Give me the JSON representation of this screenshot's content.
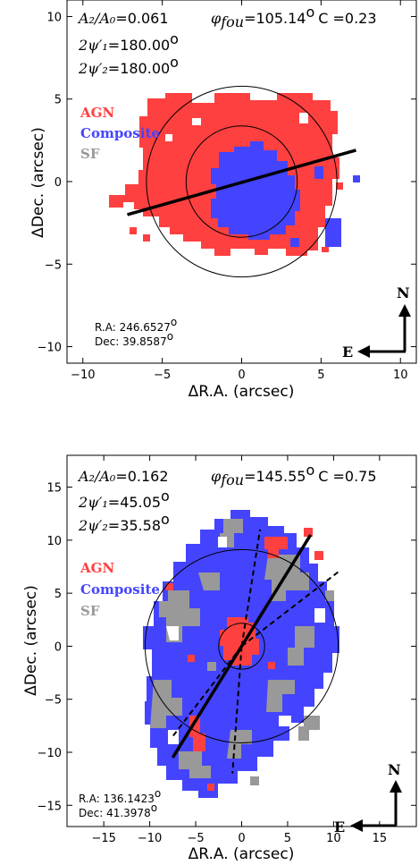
{
  "colors": {
    "agn": "#ff4040",
    "composite": "#4444ff",
    "sf": "#999999"
  },
  "legend": {
    "agn": "AGN",
    "composite": "Composite",
    "sf": "SF"
  },
  "compass": {
    "north": "N",
    "east": "E"
  },
  "chart_data": [
    {
      "type": "heatmap",
      "xlabel": "ΔR.A. (arcsec)",
      "ylabel": "ΔDec. (arcsec)",
      "xlim": [
        -11,
        11
      ],
      "ylim": [
        -11,
        11
      ],
      "xticks": [
        "−10",
        "−5",
        "0",
        "5",
        "10"
      ],
      "yticks": [
        "−10",
        "−5",
        "0",
        "5",
        "10"
      ],
      "annotation": {
        "a_label": "A₂/A₀",
        "a_value": "=0.061",
        "phi_label": "φ",
        "phi_sub": "fou",
        "phi_value": "=105.14",
        "c_value": "C =0.23",
        "psi1_label": "2ψ′₁",
        "psi1_value": "=180.00",
        "psi2_label": "2ψ′₂",
        "psi2_value": "=180.00"
      },
      "ra_text": "R.A: 246.6527",
      "dec_text": "Dec: 39.8587",
      "circles_r": [
        3.5,
        6.0
      ],
      "main_line": [
        [
          -7.2,
          -2.0
        ],
        [
          7.2,
          1.9
        ]
      ],
      "dashed_lines": []
    },
    {
      "type": "heatmap",
      "xlabel": "ΔR.A. (arcsec)",
      "ylabel": "ΔDec. (arcsec)",
      "xlim": [
        -19,
        19
      ],
      "ylim": [
        -17,
        18
      ],
      "xticks": [
        "−15",
        "−10",
        "−5",
        "0",
        "5",
        "10",
        "15"
      ],
      "yticks": [
        "−15",
        "−10",
        "−5",
        "0",
        "5",
        "10",
        "15"
      ],
      "annotation": {
        "a_label": "A₂/A₀",
        "a_value": "=0.162",
        "phi_label": "φ",
        "phi_sub": "fou",
        "phi_value": "=145.55",
        "c_value": "C =0.75",
        "psi1_label": "2ψ′₁",
        "psi1_value": "=45.05",
        "psi2_label": "2ψ′₂",
        "psi2_value": "=35.58"
      },
      "ra_text": "R.A: 136.1423",
      "dec_text": "Dec: 41.3978",
      "circles_r": [
        2.5,
        10.5
      ],
      "main_line": [
        [
          -7.5,
          -10.5
        ],
        [
          7.5,
          10.5
        ]
      ],
      "dashed_lines": [
        [
          [
            0,
            0
          ],
          [
            2.0,
            11.0
          ]
        ],
        [
          [
            0,
            0
          ],
          [
            10.5,
            7.0
          ]
        ],
        [
          [
            0,
            0
          ],
          [
            -1.0,
            -12.0
          ]
        ],
        [
          [
            0,
            0
          ],
          [
            -7.5,
            -8.5
          ]
        ]
      ]
    }
  ]
}
